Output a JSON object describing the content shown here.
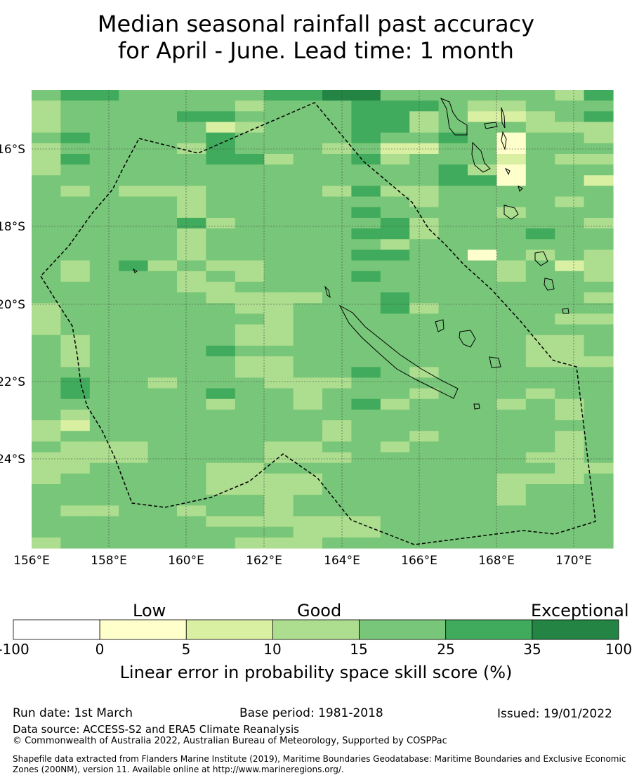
{
  "title": {
    "line1": "Median seasonal rainfall past accuracy",
    "line2": "for April - June. Lead time: 1 month"
  },
  "map": {
    "lon_labels": [
      "156°E",
      "158°E",
      "160°E",
      "162°E",
      "164°E",
      "166°E",
      "168°E",
      "170°E"
    ],
    "lat_labels": [
      "16°S",
      "18°S",
      "20°S",
      "22°S",
      "24°S"
    ],
    "colors": [
      "#ffffff",
      "#ffffcc",
      "#d9f0a3",
      "#addd8e",
      "#78c679",
      "#41ab5d",
      "#238443"
    ],
    "grid_rows": [
      "45544444556644444435",
      "34444443444555433444",
      "34444554444553422345",
      "34444423444553444333",
      "45444454444544541443",
      "34444354443422441444",
      "35444455344534442433",
      "34444444444444531444",
      "44444444444444551442",
      "43433344443533444444",
      "44444344444443444434",
      "44444344444544443444",
      "44444534444453444443",
      "44444344444553444544",
      "44444344444434444444",
      "44444344444554414343",
      "43453433444444443423",
      "43444343444544443443",
      "44444334444444444444",
      "44444433334454444443",
      "34444443344453444444",
      "34444444344444444433",
      "34444443344444444444",
      "43444443344444444334",
      "43444454444444444334",
      "43444443344444444333",
      "44444443344543444444",
      "45443444333444444444",
      "45444454434443444344",
      "44444434434534443434",
      "43444444444444444434",
      "32444444443444444444",
      "34444444443443444434",
      "43334444334434444434",
      "33334444333444444334",
      "33444433444444444433",
      "34444433334444443334",
      "44444433334444443444",
      "44444444344444443444",
      "43344344344444444444",
      "44444433333344444444",
      "44444444433344444444",
      "34444443334444444444"
    ]
  },
  "colorbar": {
    "headings": {
      "low": "Low",
      "good": "Good",
      "exceptional": "Exceptional"
    },
    "ticks": [
      "-100",
      "0",
      "5",
      "10",
      "15",
      "25",
      "35",
      "100"
    ],
    "label": "Linear error in probability space skill score (%)"
  },
  "footer": {
    "run_date": "Run date: 1st March",
    "base_period": "Base period: 1981-2018",
    "issued": "Issued: 19/01/2022",
    "data_source": "Data source: ACCESS-S2 and ERA5 Climate Reanalysis",
    "copyright": "© Commonwealth of Australia 2022, Australian Bureau of Meteorology, Supported by COSPPac",
    "shapefile_line1": "Shapefile data extracted from Flanders Marine Institute (2019), Maritime Boundaries Geodatabase: Maritime Boundaries and Exclusive Economic",
    "shapefile_line2": "Zones (200NM), version 11. Available online at http://www.marineregions.org/."
  }
}
